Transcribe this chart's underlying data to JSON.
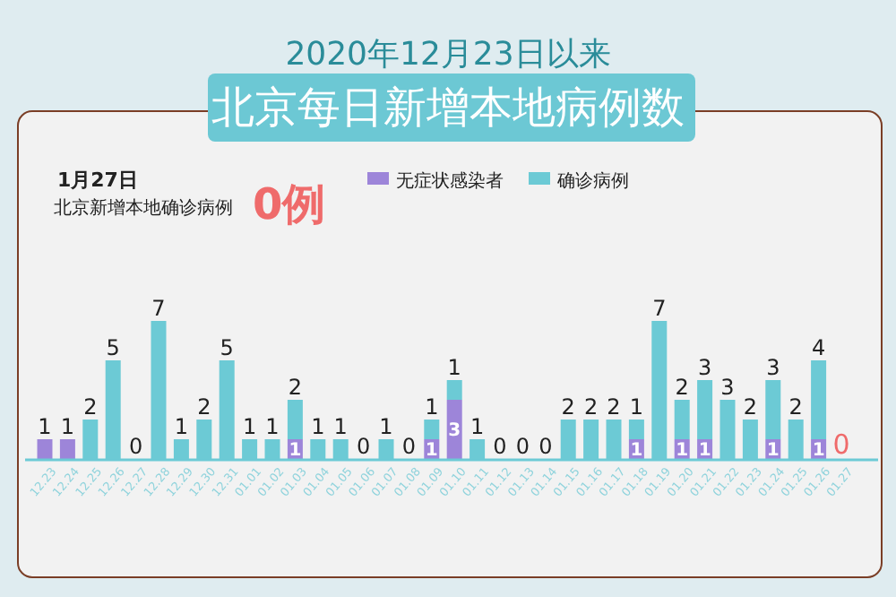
{
  "chart_data": {
    "type": "bar",
    "stacked": true,
    "title": "2020年12月23日以来",
    "subtitle": "北京每日新增本地病例数",
    "annotations": [
      "1月27日",
      "北京新增本地确诊病例",
      "0例",
      {
        "text": "0",
        "x": "01.27",
        "y": 0
      }
    ],
    "categories": [
      "12.23",
      "12.24",
      "12.25",
      "12.26",
      "12.27",
      "12.28",
      "12.29",
      "12.30",
      "12.31",
      "01.01",
      "01.02",
      "01.03",
      "01.04",
      "01.05",
      "01.06",
      "01.07",
      "01.08",
      "01.09",
      "01.10",
      "01.11",
      "01.12",
      "01.13",
      "01.14",
      "01.15",
      "01.16",
      "01.17",
      "01.18",
      "01.19",
      "01.20",
      "01.21",
      "01.22",
      "01.23",
      "01.24",
      "01.25",
      "01.26",
      "01.27"
    ],
    "series": [
      {
        "name": "无症状感染者",
        "color": "#9d85d9",
        "values": [
          1,
          1,
          0,
          0,
          0,
          0,
          0,
          0,
          0,
          0,
          0,
          1,
          0,
          0,
          0,
          0,
          0,
          1,
          3,
          0,
          0,
          0,
          0,
          0,
          0,
          0,
          1,
          0,
          1,
          1,
          0,
          0,
          1,
          0,
          1,
          0
        ],
        "value_labels": [
          "1",
          "1",
          null,
          null,
          null,
          null,
          null,
          null,
          null,
          null,
          null,
          "1",
          null,
          null,
          null,
          null,
          null,
          "1",
          "3",
          null,
          null,
          null,
          null,
          null,
          null,
          null,
          "1",
          null,
          "1",
          "1",
          null,
          null,
          "1",
          null,
          "1",
          null
        ]
      },
      {
        "name": "确诊病例",
        "color": "#6ccad5",
        "values": [
          0,
          0,
          2,
          5,
          0,
          7,
          1,
          2,
          5,
          1,
          1,
          2,
          1,
          1,
          0,
          1,
          0,
          1,
          1,
          1,
          0,
          0,
          0,
          2,
          2,
          2,
          1,
          7,
          2,
          3,
          3,
          2,
          3,
          2,
          4,
          0
        ],
        "value_labels": [
          null,
          null,
          "2",
          "5",
          "0",
          "7",
          "1",
          "2",
          "5",
          "1",
          "1",
          "2",
          "1",
          "1",
          "0",
          "1",
          "0",
          "1",
          "1",
          "1",
          "0",
          "0",
          "0",
          "2",
          "2",
          "2",
          "1",
          "7",
          "2",
          "3",
          "3",
          "2",
          "3",
          "2",
          "4",
          null
        ]
      }
    ],
    "legend": "top right"
  }
}
